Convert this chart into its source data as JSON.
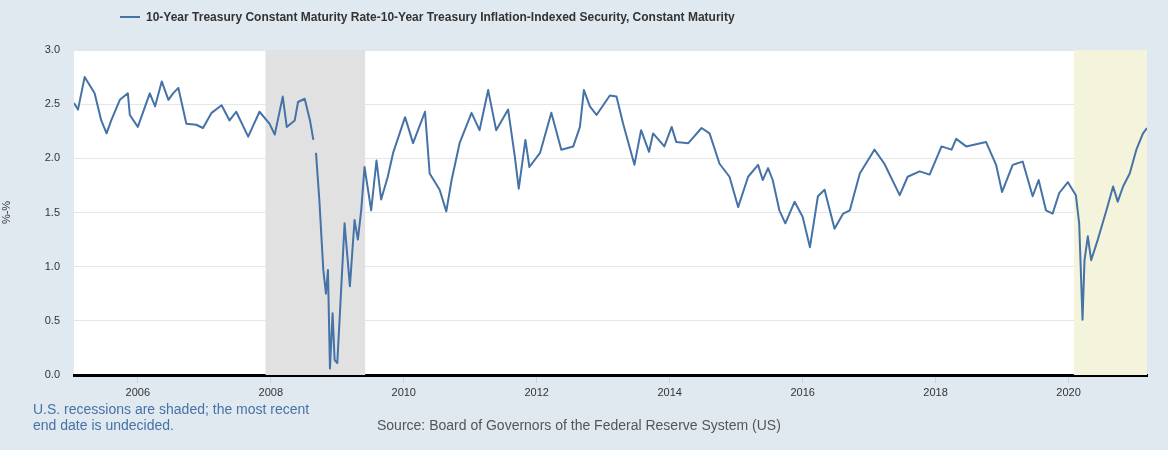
{
  "chart_data": {
    "type": "line",
    "ylabel": "%-%",
    "annotations": [
      "U.S. recessions are shaded; the most recent end date is undecided.",
      "Source: Board of Governors of the Federal Reserve System (US)"
    ],
    "xlim": [
      2005.04,
      2021.18
    ],
    "xticks": [
      2006,
      2008,
      2010,
      2012,
      2014,
      2016,
      2018,
      2020
    ],
    "ylim": [
      0,
      3
    ],
    "yticks": [
      {
        "value": 0,
        "label": "0.0"
      },
      {
        "value": 0.5,
        "label": "0.5"
      },
      {
        "value": 1,
        "label": "1.0"
      },
      {
        "value": 1.5,
        "label": "1.5"
      },
      {
        "value": 2,
        "label": "2.0"
      },
      {
        "value": 2.5,
        "label": "2.5"
      },
      {
        "value": 3,
        "label": "3.0"
      }
    ],
    "grid": "y",
    "legend": "top left",
    "marker": "none",
    "line_style": "solid",
    "bands": [
      {
        "axis": "x",
        "from": 2007.92,
        "to": 2009.42,
        "color": "#e1e1e1"
      },
      {
        "axis": "x",
        "from": 2020.08,
        "to": 2021.18,
        "color": "#f4f4dc"
      }
    ],
    "series": [
      {
        "name": "10-Year Treasury Constant Maturity Rate-10-Year Treasury Inflation-Indexed Security, Constant Maturity",
        "color": "#4572a7",
        "x": [
          2005.04,
          2005.1,
          2005.2,
          2005.35,
          2005.45,
          2005.53,
          2005.6,
          2005.73,
          2005.85,
          2005.88,
          2006.0,
          2006.18,
          2006.26,
          2006.36,
          2006.46,
          2006.53,
          2006.61,
          2006.73,
          2006.88,
          2006.98,
          2007.11,
          2007.26,
          2007.38,
          2007.48,
          2007.66,
          2007.83,
          2007.98,
          2008.06,
          2008.18,
          2008.24,
          2008.36,
          2008.41,
          2008.51,
          2008.59,
          2008.64,
          2008.66,
          2008.68,
          2008.73,
          2008.79,
          2008.83,
          2008.86,
          2008.89,
          2008.93,
          2008.96,
          2009.0,
          2009.04,
          2009.11,
          2009.19,
          2009.26,
          2009.31,
          2009.36,
          2009.41,
          2009.51,
          2009.59,
          2009.66,
          2009.76,
          2009.84,
          2010.02,
          2010.14,
          2010.32,
          2010.39,
          2010.54,
          2010.64,
          2010.72,
          2010.84,
          2011.02,
          2011.14,
          2011.27,
          2011.39,
          2011.57,
          2011.67,
          2011.73,
          2011.83,
          2011.89,
          2012.05,
          2012.22,
          2012.37,
          2012.55,
          2012.65,
          2012.71,
          2012.8,
          2012.9,
          2013.1,
          2013.2,
          2013.3,
          2013.47,
          2013.57,
          2013.69,
          2013.75,
          2013.92,
          2014.03,
          2014.1,
          2014.28,
          2014.48,
          2014.6,
          2014.75,
          2014.9,
          2015.03,
          2015.18,
          2015.33,
          2015.4,
          2015.48,
          2015.55,
          2015.65,
          2015.74,
          2015.88,
          2016.0,
          2016.11,
          2016.23,
          2016.33,
          2016.48,
          2016.61,
          2016.71,
          2016.86,
          2017.08,
          2017.23,
          2017.46,
          2017.58,
          2017.76,
          2017.91,
          2018.09,
          2018.24,
          2018.31,
          2018.46,
          2018.76,
          2018.91,
          2019.0,
          2019.16,
          2019.31,
          2019.46,
          2019.55,
          2019.66,
          2019.76,
          2019.86,
          2019.99,
          2020.11,
          2020.16,
          2020.21,
          2020.24,
          2020.29,
          2020.34,
          2020.44,
          2020.57,
          2020.67,
          2020.74,
          2020.82,
          2020.92,
          2021.02,
          2021.12,
          2021.18
        ],
        "values": [
          2.51,
          2.45,
          2.75,
          2.6,
          2.35,
          2.23,
          2.35,
          2.54,
          2.6,
          2.4,
          2.29,
          2.6,
          2.48,
          2.71,
          2.54,
          2.6,
          2.65,
          2.32,
          2.31,
          2.28,
          2.42,
          2.49,
          2.35,
          2.43,
          2.2,
          2.43,
          2.32,
          2.22,
          2.57,
          2.29,
          2.35,
          2.52,
          2.55,
          2.35,
          2.17,
          null,
          2.05,
          1.62,
          0.97,
          0.75,
          0.97,
          0.06,
          0.57,
          0.14,
          0.11,
          0.57,
          1.4,
          0.82,
          1.43,
          1.25,
          1.52,
          1.92,
          1.52,
          1.98,
          1.62,
          1.83,
          2.05,
          2.38,
          2.14,
          2.43,
          1.86,
          1.71,
          1.51,
          1.8,
          2.14,
          2.42,
          2.26,
          2.63,
          2.26,
          2.45,
          2.02,
          1.72,
          2.17,
          1.92,
          2.05,
          2.42,
          2.08,
          2.11,
          2.29,
          2.63,
          2.48,
          2.4,
          2.58,
          2.57,
          2.32,
          1.94,
          2.26,
          2.06,
          2.23,
          2.11,
          2.29,
          2.15,
          2.14,
          2.28,
          2.23,
          1.95,
          1.83,
          1.55,
          1.83,
          1.94,
          1.8,
          1.91,
          1.8,
          1.52,
          1.4,
          1.6,
          1.46,
          1.18,
          1.65,
          1.71,
          1.35,
          1.49,
          1.52,
          1.86,
          2.08,
          1.95,
          1.66,
          1.83,
          1.88,
          1.85,
          2.11,
          2.08,
          2.18,
          2.11,
          2.15,
          1.94,
          1.69,
          1.94,
          1.97,
          1.65,
          1.8,
          1.52,
          1.49,
          1.68,
          1.78,
          1.66,
          1.4,
          0.51,
          1.06,
          1.28,
          1.06,
          1.25,
          1.52,
          1.74,
          1.6,
          1.74,
          1.86,
          2.08,
          2.23,
          2.28
        ]
      }
    ]
  }
}
